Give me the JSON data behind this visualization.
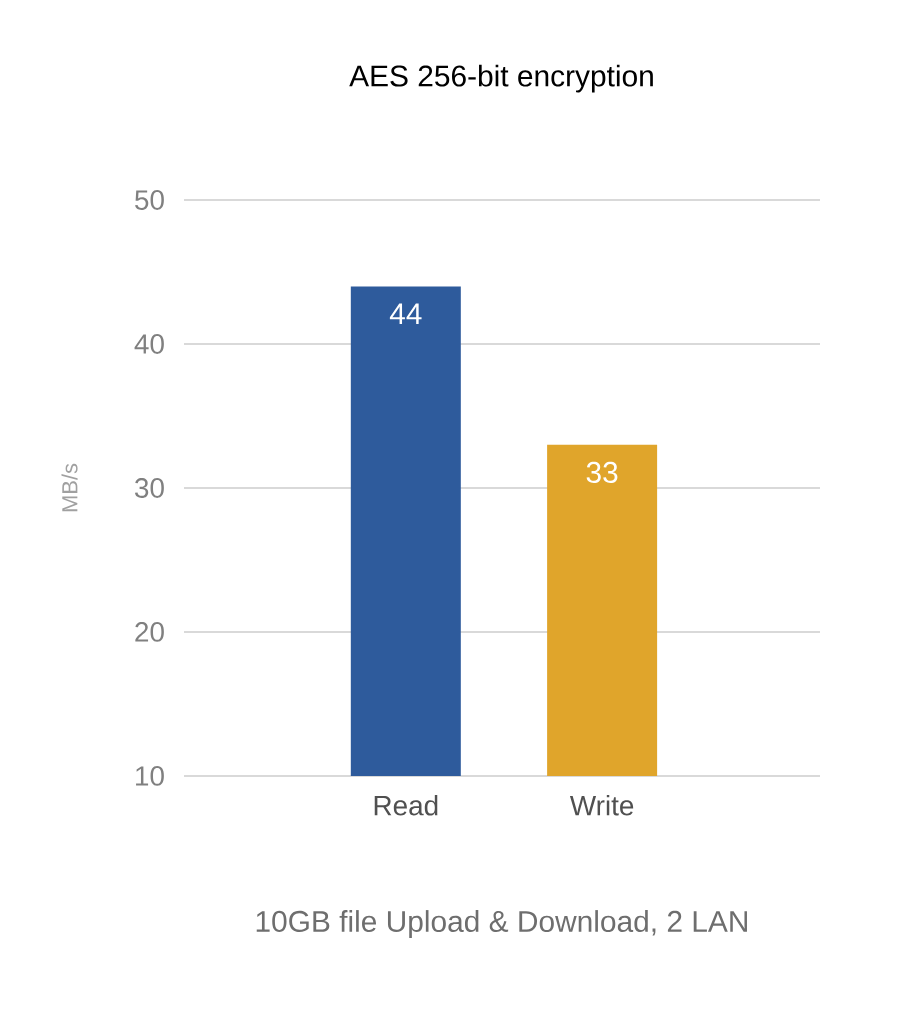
{
  "chart_data": {
    "type": "bar",
    "title": "AES 256-bit encryption",
    "ylabel": "MB/s",
    "categories": [
      "Read",
      "Write"
    ],
    "values": [
      44,
      33
    ],
    "colors": [
      "#2e5b9c",
      "#e0a52b"
    ],
    "ylim": [
      10,
      50
    ],
    "yticks": [
      10,
      20,
      30,
      40,
      50
    ],
    "grid": "y",
    "data_labels": true,
    "annotations": [
      "10GB file Upload & Download, 2 LAN"
    ]
  }
}
